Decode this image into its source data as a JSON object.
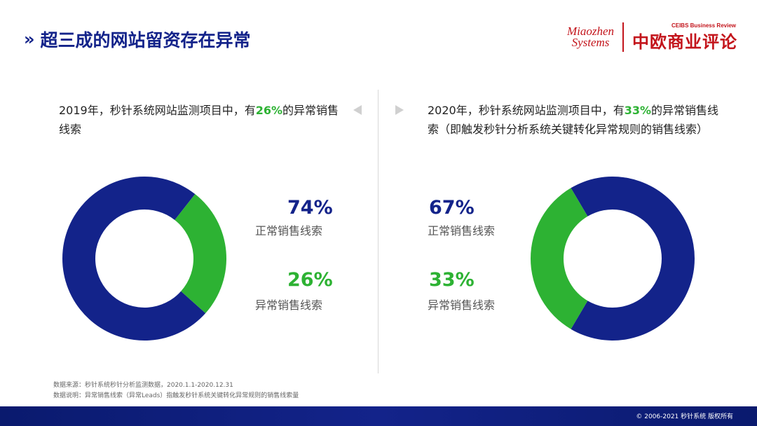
{
  "title": "超三成的网站留资存在异常",
  "logos": {
    "miaozhen": [
      "Miaozhen",
      "Systems"
    ],
    "ceibs_en": "CEIBS Business Review",
    "ceibs_cn": "中欧商业评论"
  },
  "left": {
    "caption_pre": "2019年，秒针系统网站监测项目中，有",
    "caption_highlight": "26%",
    "caption_post": "的异常销售线索"
  },
  "right": {
    "caption_pre": "2020年，秒针系统网站监测项目中，有",
    "caption_highlight": "33%",
    "caption_post": "的异常销售线索（即触发秒针分析系统关键转化异常规则的销售线索）"
  },
  "chart_data": [
    {
      "type": "pie",
      "year": "2019",
      "categories": [
        "正常销售线索",
        "异常销售线索"
      ],
      "values": [
        74,
        26
      ],
      "value_labels": [
        "74%",
        "26%"
      ],
      "colors": [
        "#13238a",
        "#2db233"
      ]
    },
    {
      "type": "pie",
      "year": "2020",
      "categories": [
        "正常销售线索",
        "异常销售线索"
      ],
      "values": [
        67,
        33
      ],
      "value_labels": [
        "67%",
        "33%"
      ],
      "colors": [
        "#13238a",
        "#2db233"
      ]
    }
  ],
  "footnotes": [
    "数据来源：秒针系统秒针分析监测数据，2020.1.1-2020.12.31",
    "数据说明：异常销售线索（异常Leads）指触发秒针系统关键转化异常规则的销售线索量"
  ],
  "copyright": "© 2006-2021  秒针系统 版权所有"
}
